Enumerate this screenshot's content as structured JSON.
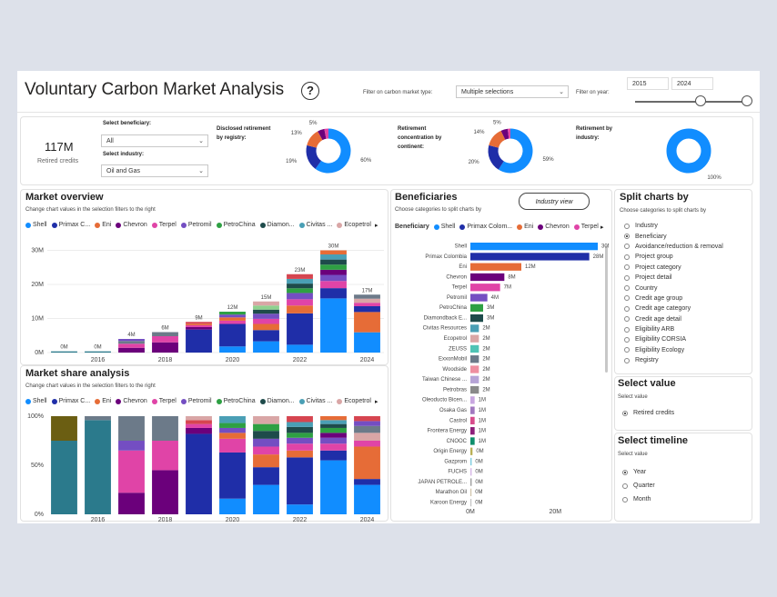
{
  "header": {
    "title": "Voluntary Carbon Market Analysis",
    "help_icon": "question-icon",
    "market_type_label": "Filter on carbon market type:",
    "market_type_value": "Multiple selections",
    "year_label": "Filter on year:",
    "year_from": "2015",
    "year_to": "2024"
  },
  "kpi": {
    "value": "117M",
    "label": "Retired credits"
  },
  "filters": {
    "beneficiary_label": "Select beneficiary:",
    "beneficiary_value": "All",
    "industry_label": "Select industry:",
    "industry_value": "Oil and Gas"
  },
  "donuts": [
    {
      "label": "Disclosed retirement by registry:",
      "slices": [
        60,
        19,
        13,
        5,
        3
      ],
      "labels": [
        "60%",
        "19%",
        "13%",
        "5%"
      ],
      "colors": [
        "#118dff",
        "#1f2ea8",
        "#e66c37",
        "#6b007b",
        "#e044a7"
      ]
    },
    {
      "label": "Retirement concentration by continent:",
      "slices": [
        59,
        20,
        14,
        5,
        2
      ],
      "labels": [
        "59%",
        "20%",
        "14%",
        "5%"
      ],
      "colors": [
        "#118dff",
        "#1f2ea8",
        "#e66c37",
        "#6b007b",
        "#e044a7"
      ]
    },
    {
      "label": "Retirement by industry:",
      "slices": [
        100
      ],
      "labels": [
        "100%"
      ],
      "colors": [
        "#118dff"
      ]
    }
  ],
  "legend": {
    "names": [
      "Shell",
      "Primax C...",
      "Eni",
      "Chevron",
      "Terpel",
      "Petromil",
      "PetroChina",
      "Diamon...",
      "Civitas ...",
      "Ecopetrol"
    ],
    "colors": [
      "#118dff",
      "#1f2ea8",
      "#e66c37",
      "#6b007b",
      "#e044a7",
      "#744ec2",
      "#2ea043",
      "#1e4b4b",
      "#4a9fb5",
      "#d9a6a6"
    ],
    "more_icon": "chevron-right-icon"
  },
  "market_overview": {
    "title": "Market overview",
    "subtitle": "Change chart values in the selection filters to the right",
    "chart_data": {
      "type": "bar",
      "stacked": true,
      "categories": [
        "2015",
        "2016",
        "2017",
        "2018",
        "2019",
        "2020",
        "2021",
        "2022",
        "2023",
        "2024"
      ],
      "x_tick_labels": [
        "2016",
        "2018",
        "2020",
        "2022",
        "2024"
      ],
      "values": [
        0.1,
        0.3,
        4,
        6,
        9,
        12,
        15,
        23,
        30,
        17
      ],
      "data_labels": [
        "0M",
        "0M",
        "4M",
        "6M",
        "9M",
        "12M",
        "15M",
        "23M",
        "30M",
        "17M"
      ],
      "y_ticks": [
        "0M",
        "10M",
        "20M",
        "30M"
      ],
      "ylim": [
        0,
        32
      ]
    }
  },
  "market_share": {
    "title": "Market share analysis",
    "subtitle": "Change chart values in the selection filters to the right",
    "chart_data": {
      "type": "bar",
      "stacked": true,
      "normalized": true,
      "categories": [
        "2015",
        "2016",
        "2017",
        "2018",
        "2019",
        "2020",
        "2021",
        "2022",
        "2023",
        "2024"
      ],
      "x_tick_labels": [
        "2016",
        "2018",
        "2020",
        "2022",
        "2024"
      ],
      "y_ticks": [
        "0%",
        "50%",
        "100%"
      ]
    }
  },
  "beneficiaries": {
    "title": "Beneficiaries",
    "subtitle": "Choose categories to split charts by",
    "view_button": "Industry view",
    "legend_title": "Beneficiary",
    "legend_names": [
      "Shell",
      "Primax Colom...",
      "Eni",
      "Chevron",
      "Terpel"
    ],
    "chart_data": {
      "type": "bar",
      "orientation": "horizontal",
      "categories": [
        "Shell",
        "Primax Colombia",
        "Eni",
        "Chevron",
        "Terpel",
        "Petromil",
        "PetroChina",
        "Diamondback E...",
        "Civitas Resources",
        "Ecopetrol",
        "ZEUSS",
        "ExxonMobil",
        "Woodside",
        "Taiwan Chinese ...",
        "Petrobras",
        "Oleoducto Bicen...",
        "Osaka Gas",
        "Castrol",
        "Frontera Energy",
        "CNOOC",
        "Origin Energy",
        "Gazprom",
        "FUCHS",
        "JAPAN PETROLE...",
        "Marathon Oil",
        "Karoon Energy"
      ],
      "values": [
        30,
        28,
        12,
        8,
        7,
        4,
        3,
        3,
        2,
        2,
        2,
        2,
        2,
        2,
        2,
        1,
        1,
        1,
        1,
        1,
        0.5,
        0.3,
        0.3,
        0.3,
        0.2,
        0.2
      ],
      "data_labels": [
        "30M",
        "28M",
        "12M",
        "8M",
        "7M",
        "4M",
        "3M",
        "3M",
        "2M",
        "2M",
        "2M",
        "2M",
        "2M",
        "2M",
        "2M",
        "1M",
        "1M",
        "1M",
        "1M",
        "1M",
        "0M",
        "0M",
        "0M",
        "0M",
        "0M",
        "0M"
      ],
      "colors": [
        "#118dff",
        "#1f2ea8",
        "#e66c37",
        "#6b007b",
        "#e044a7",
        "#744ec2",
        "#2ea043",
        "#1e4b4b",
        "#4a9fb5",
        "#d9a6a6",
        "#4fc3b5",
        "#6c7a89",
        "#ee8ea0",
        "#b6a3d6",
        "#8a8a8a",
        "#c8a6e0",
        "#a178bf",
        "#d84c8c",
        "#8d1f7a",
        "#0f8f6c",
        "#b9b055",
        "#7ecde0",
        "#d6b6e6",
        "#9e9e9e",
        "#cfc2a8",
        "#c2c2c2"
      ],
      "x_ticks": [
        "0M",
        "20M"
      ],
      "xlim": [
        0,
        30
      ]
    }
  },
  "split": {
    "title": "Split charts by",
    "subtitle": "Choose categories to split charts by",
    "options": [
      "Industry",
      "Beneficiary",
      "Avoidance/reduction & removal",
      "Project group",
      "Project category",
      "Project detail",
      "Country",
      "Credit age group",
      "Credit age category",
      "Credit age detail",
      "Eligibility ARB",
      "Eligibility CORSIA",
      "Eligibility Ecology",
      "Registry"
    ],
    "selected": 1
  },
  "select_value": {
    "title": "Select value",
    "subtitle": "Select value",
    "options": [
      "Retired credits"
    ],
    "selected": 0
  },
  "timeline": {
    "title": "Select timeline",
    "subtitle": "Select value",
    "options": [
      "Year",
      "Quarter",
      "Month"
    ],
    "selected": 0
  }
}
